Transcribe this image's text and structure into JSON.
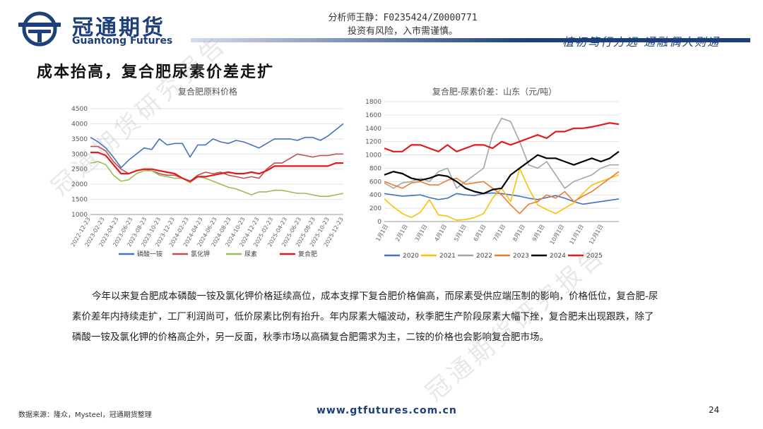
{
  "header": {
    "brand_cn": "冠通期货",
    "brand_en": "Guantong Futures",
    "analyst": "分析师王静：F0235424/Z0000771",
    "risk": "投资有风险，入市需谨慎。",
    "motto": "植初笃行方远 通融偶人则通"
  },
  "slide_title": "成本抬高，复合肥尿素价差走扩",
  "watermark": "冠通期货研究报告",
  "chart_data": [
    {
      "type": "line",
      "title": "复合肥原料价格",
      "ylim": [
        1000,
        4500
      ],
      "yticks": [
        "1000",
        "1500",
        "2000",
        "2500",
        "3000",
        "3500",
        "4000",
        "4500"
      ],
      "xticks": [
        "2022-12-23",
        "2023-02-23",
        "2023-04-23",
        "2023-06-23",
        "2023-08-23",
        "2023-10-23",
        "2023-12-23",
        "2024-02-23",
        "2024-04-23",
        "2024-06-23",
        "2024-08-23",
        "2024-10-23",
        "2024-12-23",
        "2025-02-23",
        "2025-04-23",
        "2025-06-23",
        "2025-08-23",
        "2025-10-23",
        "2025-12-23"
      ],
      "legend_position": "bottom",
      "series": [
        {
          "name": "磷酸一铵",
          "color": "#4472c4",
          "values": [
            3550,
            3400,
            3200,
            2900,
            2550,
            2800,
            3000,
            3200,
            3150,
            3500,
            3300,
            3350,
            3350,
            2900,
            3300,
            3300,
            3500,
            3400,
            3350,
            3450,
            3400,
            3300,
            3200,
            3350,
            3500,
            3500,
            3500,
            3450,
            3550,
            3550,
            3450,
            3600,
            3800,
            4000
          ]
        },
        {
          "name": "氯化钾",
          "color": "#c0504d",
          "values": [
            3250,
            3250,
            3100,
            2750,
            2500,
            2350,
            2450,
            2500,
            2450,
            2350,
            2300,
            2300,
            2200,
            2100,
            2300,
            2400,
            2350,
            2400,
            2300,
            2250,
            2200,
            2250,
            2200,
            2500,
            2700,
            2700,
            2850,
            3000,
            2950,
            2900,
            2950,
            2950,
            3000,
            3000
          ]
        },
        {
          "name": "尿素",
          "color": "#9bbb59",
          "values": [
            2700,
            2750,
            2650,
            2300,
            2100,
            2150,
            2350,
            2450,
            2450,
            2300,
            2250,
            2200,
            2200,
            2050,
            2250,
            2200,
            2100,
            2000,
            1900,
            1850,
            1750,
            1650,
            1750,
            1750,
            1800,
            1800,
            1750,
            1700,
            1700,
            1650,
            1600,
            1600,
            1650,
            1700
          ]
        },
        {
          "name": "复合肥",
          "color": "#e31a1c",
          "values": [
            3050,
            3050,
            2950,
            2650,
            2350,
            2350,
            2450,
            2500,
            2500,
            2450,
            2400,
            2350,
            2200,
            2100,
            2250,
            2250,
            2300,
            2350,
            2400,
            2350,
            2350,
            2400,
            2350,
            2450,
            2600,
            2600,
            2600,
            2600,
            2600,
            2600,
            2600,
            2600,
            2700,
            2700
          ]
        }
      ]
    },
    {
      "type": "line",
      "title": "复合肥-尿素价差：山东（元/吨）",
      "ylim": [
        0,
        1800
      ],
      "yticks": [
        "0",
        "200",
        "400",
        "600",
        "800",
        "1000",
        "1200",
        "1400",
        "1600",
        "1800"
      ],
      "xticks": [
        "1月1日",
        "2月1日",
        "3月1日",
        "4月1日",
        "5月1日",
        "6月1日",
        "7月1日",
        "8月1日",
        "9月1日",
        "10月1日",
        "11月1日",
        "12月1日"
      ],
      "legend_position": "bottom",
      "series": [
        {
          "name": "2020",
          "color": "#4472c4",
          "values": [
            420,
            400,
            380,
            390,
            400,
            360,
            330,
            350,
            420,
            400,
            390,
            420,
            430,
            420,
            400,
            380,
            350,
            330,
            360,
            390,
            350,
            300,
            260,
            280,
            300,
            320,
            340
          ]
        },
        {
          "name": "2021",
          "color": "#ffc000",
          "values": [
            340,
            220,
            120,
            60,
            140,
            330,
            100,
            80,
            20,
            30,
            60,
            120,
            350,
            500,
            300,
            800,
            500,
            250,
            180,
            120,
            200,
            280,
            420,
            550,
            600,
            650,
            700
          ]
        },
        {
          "name": "2022",
          "color": "#a5a5a5",
          "values": [
            580,
            500,
            580,
            600,
            650,
            600,
            750,
            800,
            500,
            600,
            700,
            800,
            1300,
            1550,
            1500,
            1200,
            850,
            800,
            900,
            700,
            500,
            600,
            650,
            700,
            800,
            850,
            850
          ]
        },
        {
          "name": "2023",
          "color": "#ed7d31",
          "values": [
            600,
            550,
            500,
            580,
            600,
            550,
            550,
            620,
            650,
            560,
            580,
            600,
            500,
            400,
            250,
            120,
            260,
            300,
            400,
            350,
            450,
            300,
            380,
            450,
            550,
            650,
            750
          ]
        },
        {
          "name": "2024",
          "color": "#000000",
          "values": [
            700,
            750,
            720,
            650,
            620,
            650,
            700,
            680,
            600,
            500,
            450,
            420,
            480,
            500,
            700,
            800,
            900,
            1000,
            950,
            950,
            900,
            850,
            900,
            950,
            900,
            950,
            1050
          ]
        },
        {
          "name": "2025",
          "color": "#e31a1c",
          "values": [
            1100,
            1050,
            1050,
            1150,
            1150,
            1100,
            1050,
            1150,
            1050,
            1100,
            1150,
            1150,
            1100,
            1200,
            1150,
            1200,
            1250,
            1300,
            1250,
            1350,
            1350,
            1400,
            1400,
            1420,
            1450,
            1480,
            1460
          ]
        }
      ]
    }
  ],
  "paragraph": "今年以来复合肥成本磷酸一铵及氯化钾价格延续高位，成本支撑下复合肥价格偏高，而尿素受供应端压制的影响，价格低位，复合肥-尿素价差年内持续走扩，工厂利润尚可，低价尿素比例有抬升。年内尿素大幅波动，秋季肥生产阶段尿素大幅下挫，复合肥未出现跟跌，除了磷酸一铵及氯化钾的价格高企外，另一反面，秋季市场以高磷复合肥需求为主，二铵的价格也会影响复合肥市场。",
  "footer": {
    "source": "数据来源：隆众，Mysteel，冠通期货整理",
    "website": "www.gtfutures.com.cn",
    "page": "24"
  },
  "colors": {
    "brand": "#1d3f7a"
  },
  "icons": {
    "logo": "guantong-logo-icon"
  }
}
